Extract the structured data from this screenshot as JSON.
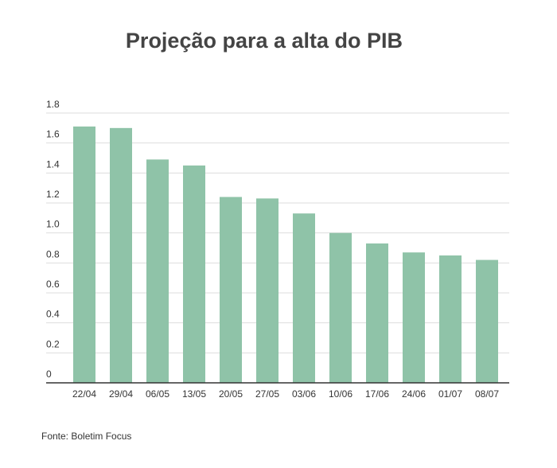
{
  "chart_data": {
    "type": "bar",
    "title": "Projeção para a alta do PIB",
    "xlabel": "",
    "ylabel": "",
    "categories": [
      "22/04",
      "29/04",
      "06/05",
      "13/05",
      "20/05",
      "27/05",
      "03/06",
      "10/06",
      "17/06",
      "24/06",
      "01/07",
      "08/07"
    ],
    "values": [
      1.71,
      1.7,
      1.49,
      1.45,
      1.24,
      1.23,
      1.13,
      1.0,
      0.93,
      0.87,
      0.85,
      0.82
    ],
    "ylim": [
      0,
      1.8
    ],
    "yticks": [
      "0",
      "0.2",
      "0.4",
      "0.6",
      "0.8",
      "1.0",
      "1.2",
      "1.4",
      "1.6",
      "1.8"
    ],
    "grid": true,
    "bar_color": "#8fc3a8",
    "grid_color": "#dddddd",
    "axis_color": "#333333"
  },
  "source": "Fonte: Boletim Focus"
}
